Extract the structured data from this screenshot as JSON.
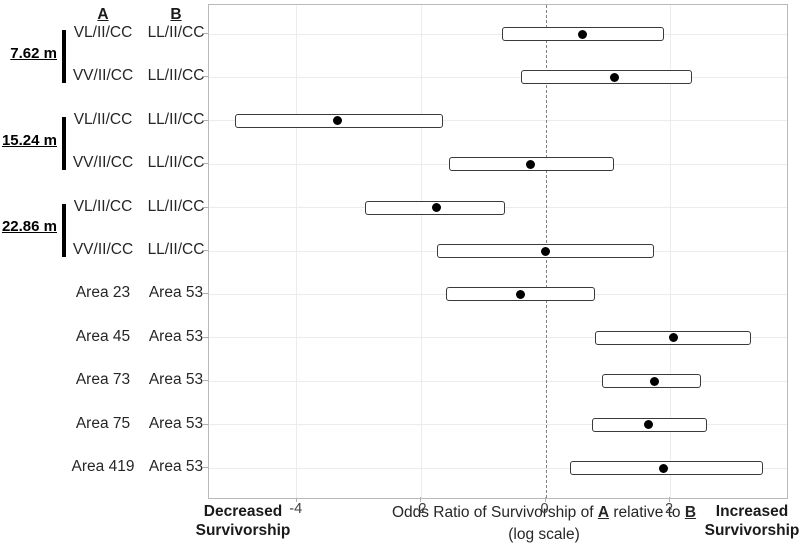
{
  "chart_data": {
    "type": "forest",
    "description": "Forest plot of odds ratios (log scale) with 95% interval boxes and point-estimate dots",
    "col_header_a": "A",
    "col_header_b": "B",
    "x_ticks": [
      -4,
      -2,
      0,
      2
    ],
    "xlim": [
      -5.41,
      3.88
    ],
    "zero_reference": 0,
    "xlabel_parts": [
      "Odds Ratio of Survivorship of ",
      "A",
      " relative to ",
      "B"
    ],
    "xlabel_sub": "(log scale)",
    "left_annotation_line1": "Decreased",
    "left_annotation_line2": "Survivorship",
    "right_annotation_line1": "Increased",
    "right_annotation_line2": "Survivorship",
    "groups": [
      {
        "label": "7.62 m",
        "rows": [
          0,
          1
        ]
      },
      {
        "label": "15.24 m",
        "rows": [
          2,
          3
        ]
      },
      {
        "label": "22.86 m",
        "rows": [
          4,
          5
        ]
      }
    ],
    "rows": [
      {
        "a": "VL/II/CC",
        "b": "LL/II/CC",
        "lo": -0.7,
        "mid": 0.6,
        "hi": 1.9
      },
      {
        "a": "VV/II/CC",
        "b": "LL/II/CC",
        "lo": -0.4,
        "mid": 1.1,
        "hi": 2.35
      },
      {
        "a": "VL/II/CC",
        "b": "LL/II/CC",
        "lo": -5.0,
        "mid": -3.35,
        "hi": -1.65
      },
      {
        "a": "VV/II/CC",
        "b": "LL/II/CC",
        "lo": -1.55,
        "mid": -0.25,
        "hi": 1.1
      },
      {
        "a": "VL/II/CC",
        "b": "LL/II/CC",
        "lo": -2.9,
        "mid": -1.75,
        "hi": -0.65
      },
      {
        "a": "VV/II/CC",
        "b": "LL/II/CC",
        "lo": -1.75,
        "mid": 0.0,
        "hi": 1.75
      },
      {
        "a": "Area 23",
        "b": "Area 53",
        "lo": -1.6,
        "mid": -0.4,
        "hi": 0.8
      },
      {
        "a": "Area 45",
        "b": "Area 53",
        "lo": 0.8,
        "mid": 2.05,
        "hi": 3.3
      },
      {
        "a": "Area 73",
        "b": "Area 53",
        "lo": 0.9,
        "mid": 1.75,
        "hi": 2.5
      },
      {
        "a": "Area 75",
        "b": "Area 53",
        "lo": 0.75,
        "mid": 1.65,
        "hi": 2.6
      },
      {
        "a": "Area 419",
        "b": "Area 53",
        "lo": 0.4,
        "mid": 1.9,
        "hi": 3.5
      }
    ],
    "colors": {
      "box_border": "#3a3a3a",
      "dot": "#000000",
      "grid": "#ececec",
      "plot_border": "#b9b9b9",
      "zero_line": "#808080",
      "text": "#262626"
    }
  }
}
